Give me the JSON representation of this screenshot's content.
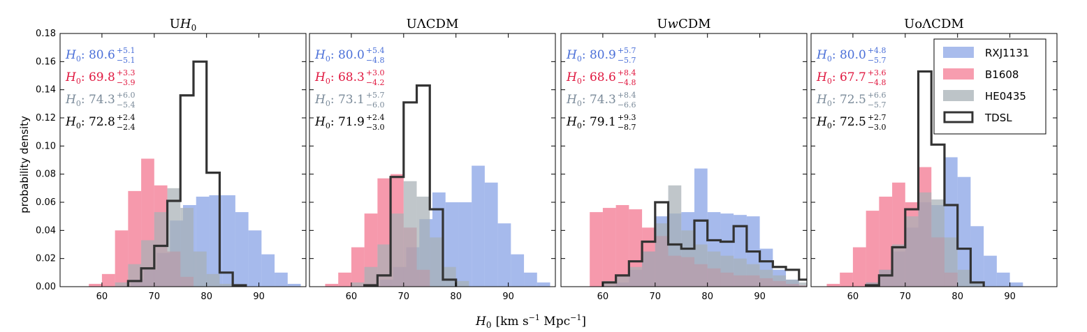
{
  "figure": {
    "ylabel": "probability density",
    "xlabel_base": "H",
    "xlabel_sub": "0",
    "xlabel_units": "[km s",
    "xlabel_exp1": "−1",
    "xlabel_mpc": " Mpc",
    "xlabel_exp2": "−1",
    "xlabel_close": "]",
    "yticks": [
      "0.00",
      "0.02",
      "0.04",
      "0.06",
      "0.08",
      "0.10",
      "0.12",
      "0.14",
      "0.16",
      "0.18"
    ],
    "xticks": [
      "60",
      "70",
      "80",
      "90"
    ]
  },
  "legend": {
    "placement": "top-right (in fourth panel)",
    "items": [
      {
        "label": "RXJ1131",
        "color": "#6f8fe0",
        "style": "fill"
      },
      {
        "label": "B1608",
        "color": "#f15b79",
        "style": "fill"
      },
      {
        "label": "HE0435",
        "color": "#a7b0b6",
        "style": "fill"
      },
      {
        "label": "TDSL",
        "color": "#333333",
        "style": "step"
      }
    ]
  },
  "chart_data": [
    {
      "type": "histogram",
      "title_pre": "U",
      "title_main": "H",
      "title_sub": "0",
      "title_italic": true,
      "xlim": [
        52,
        99
      ],
      "ylim": [
        0,
        0.18
      ],
      "grid": false,
      "bin_width": 2.5,
      "series": [
        {
          "name": "RXJ1131",
          "color": "#6f8fe0",
          "style": "fill",
          "x_start": 58,
          "values": [
            0.0,
            0.0,
            0.0,
            0.005,
            0.012,
            0.024,
            0.047,
            0.058,
            0.064,
            0.065,
            0.065,
            0.053,
            0.04,
            0.023,
            0.01,
            0.002
          ]
        },
        {
          "name": "B1608",
          "color": "#f15b79",
          "style": "fill",
          "x_start": 57.5,
          "values": [
            0.002,
            0.009,
            0.04,
            0.068,
            0.091,
            0.072,
            0.025,
            0.007
          ]
        },
        {
          "name": "HE0435",
          "color": "#a7b0b6",
          "style": "fill",
          "x_start": 62.5,
          "values": [
            0.003,
            0.016,
            0.033,
            0.053,
            0.07,
            0.056,
            0.025,
            0.009,
            0.002
          ]
        },
        {
          "name": "TDSL",
          "color": "#333333",
          "style": "step",
          "x_start": 65,
          "values": [
            0.004,
            0.013,
            0.029,
            0.061,
            0.136,
            0.16,
            0.081,
            0.01,
            0.001
          ]
        }
      ],
      "annotations": [
        {
          "sym": "H",
          "sub": "0",
          "val": ": 80.6",
          "up": "+5.1",
          "down": "−5.1",
          "color": "#4a6fd8"
        },
        {
          "sym": "H",
          "sub": "0",
          "val": ": 69.8",
          "up": "+3.3",
          "down": "−3.9",
          "color": "#e0173f"
        },
        {
          "sym": "H",
          "sub": "0",
          "val": ": 74.3",
          "up": "+6.0",
          "down": "−5.4",
          "color": "#7a8a99"
        },
        {
          "sym": "H",
          "sub": "0",
          "val": ": 72.8",
          "up": "+2.4",
          "down": "−2.4",
          "color": "#000000"
        }
      ]
    },
    {
      "type": "histogram",
      "title_pre": "UΛCDM",
      "title_main": "",
      "title_sub": "",
      "title_italic": false,
      "xlim": [
        52,
        99
      ],
      "ylim": [
        0,
        0.18
      ],
      "grid": false,
      "bin_width": 2.5,
      "series": [
        {
          "name": "RXJ1131",
          "color": "#6f8fe0",
          "style": "fill",
          "x_start": 58,
          "values": [
            0.0,
            0.0,
            0.0,
            0.005,
            0.014,
            0.028,
            0.048,
            0.067,
            0.06,
            0.06,
            0.086,
            0.074,
            0.045,
            0.023,
            0.01,
            0.003
          ]
        },
        {
          "name": "B1608",
          "color": "#f15b79",
          "style": "fill",
          "x_start": 55,
          "values": [
            0.002,
            0.01,
            0.028,
            0.052,
            0.077,
            0.08,
            0.042,
            0.012
          ]
        },
        {
          "name": "HE0435",
          "color": "#a7b0b6",
          "style": "fill",
          "x_start": 60,
          "values": [
            0.003,
            0.014,
            0.03,
            0.052,
            0.075,
            0.064,
            0.035,
            0.014,
            0.004
          ]
        },
        {
          "name": "TDSL",
          "color": "#333333",
          "style": "step",
          "x_start": 62.5,
          "values": [
            0.001,
            0.008,
            0.078,
            0.131,
            0.143,
            0.055,
            0.005
          ]
        }
      ],
      "annotations": [
        {
          "sym": "H",
          "sub": "0",
          "val": ": 80.0",
          "up": "+5.4",
          "down": "−4.8",
          "color": "#4a6fd8"
        },
        {
          "sym": "H",
          "sub": "0",
          "val": ": 68.3",
          "up": "+3.0",
          "down": "−4.2",
          "color": "#e0173f"
        },
        {
          "sym": "H",
          "sub": "0",
          "val": ": 73.1",
          "up": "+5.7",
          "down": "−6.0",
          "color": "#7a8a99"
        },
        {
          "sym": "H",
          "sub": "0",
          "val": ": 71.9",
          "up": "+2.4",
          "down": "−3.0",
          "color": "#000000"
        }
      ]
    },
    {
      "type": "histogram",
      "title_pre": "U",
      "title_main": "w",
      "title_sub": "",
      "title_post": "CDM",
      "title_italic": true,
      "xlim": [
        52,
        99
      ],
      "ylim": [
        0,
        0.18
      ],
      "grid": false,
      "bin_width": 2.5,
      "series": [
        {
          "name": "RXJ1131",
          "color": "#6f8fe0",
          "style": "fill",
          "x_start": 62.5,
          "values": [
            0.003,
            0.012,
            0.025,
            0.05,
            0.052,
            0.053,
            0.084,
            0.053,
            0.052,
            0.051,
            0.05,
            0.027,
            0.012,
            0.005
          ]
        },
        {
          "name": "B1608",
          "color": "#f15b79",
          "style": "fill",
          "x_start": 57.5,
          "values": [
            0.053,
            0.056,
            0.058,
            0.055,
            0.042,
            0.036,
            0.022,
            0.021,
            0.016,
            0.013,
            0.01,
            0.008,
            0.008,
            0.006,
            0.004,
            0.002,
            0.001
          ]
        },
        {
          "name": "HE0435",
          "color": "#a7b0b6",
          "style": "fill",
          "x_start": 60,
          "values": [
            0.004,
            0.008,
            0.014,
            0.025,
            0.045,
            0.072,
            0.04,
            0.03,
            0.025,
            0.022,
            0.02,
            0.016,
            0.012,
            0.008,
            0.005,
            0.003
          ]
        },
        {
          "name": "TDSL",
          "color": "#333333",
          "style": "step",
          "x_start": 60,
          "values": [
            0.003,
            0.008,
            0.018,
            0.032,
            0.06,
            0.03,
            0.027,
            0.047,
            0.033,
            0.032,
            0.043,
            0.025,
            0.018,
            0.014,
            0.012,
            0.005
          ]
        }
      ],
      "annotations": [
        {
          "sym": "H",
          "sub": "0",
          "val": ": 80.9",
          "up": "+5.7",
          "down": "−5.7",
          "color": "#4a6fd8"
        },
        {
          "sym": "H",
          "sub": "0",
          "val": ": 68.6",
          "up": "+8.4",
          "down": "−4.8",
          "color": "#e0173f"
        },
        {
          "sym": "H",
          "sub": "0",
          "val": ": 74.3",
          "up": "+8.4",
          "down": "−6.6",
          "color": "#7a8a99"
        },
        {
          "sym": "H",
          "sub": "0",
          "val": ": 79.1",
          "up": "+9.3",
          "down": "−8.7",
          "color": "#000000"
        }
      ]
    },
    {
      "type": "histogram",
      "title_pre": "UoΛCDM",
      "title_main": "",
      "title_sub": "",
      "title_italic": false,
      "xlim": [
        52,
        99
      ],
      "ylim": [
        0,
        0.18
      ],
      "grid": false,
      "bin_width": 2.5,
      "series": [
        {
          "name": "RXJ1131",
          "color": "#6f8fe0",
          "style": "fill",
          "x_start": 62.5,
          "values": [
            0.003,
            0.012,
            0.025,
            0.042,
            0.06,
            0.058,
            0.092,
            0.078,
            0.043,
            0.022,
            0.01,
            0.003
          ]
        },
        {
          "name": "B1608",
          "color": "#f15b79",
          "style": "fill",
          "x_start": 55,
          "values": [
            0.002,
            0.01,
            0.028,
            0.054,
            0.064,
            0.074,
            0.06,
            0.085,
            0.035,
            0.01
          ]
        },
        {
          "name": "HE0435",
          "color": "#a7b0b6",
          "style": "fill",
          "x_start": 62.5,
          "values": [
            0.003,
            0.012,
            0.03,
            0.05,
            0.067,
            0.062,
            0.035,
            0.012,
            0.003
          ]
        },
        {
          "name": "TDSL",
          "color": "#333333",
          "style": "step",
          "x_start": 62.5,
          "values": [
            0.001,
            0.008,
            0.028,
            0.055,
            0.153,
            0.101,
            0.058,
            0.027,
            0.003
          ]
        }
      ],
      "annotations": [
        {
          "sym": "H",
          "sub": "0",
          "val": ": 80.0",
          "up": "+4.8",
          "down": "−5.7",
          "color": "#4a6fd8"
        },
        {
          "sym": "H",
          "sub": "0",
          "val": ": 67.7",
          "up": "+3.6",
          "down": "−4.8",
          "color": "#e0173f"
        },
        {
          "sym": "H",
          "sub": "0",
          "val": ": 72.5",
          "up": "+6.6",
          "down": "−5.7",
          "color": "#7a8a99"
        },
        {
          "sym": "H",
          "sub": "0",
          "val": ": 72.5",
          "up": "+2.7",
          "down": "−3.0",
          "color": "#000000"
        }
      ]
    }
  ]
}
